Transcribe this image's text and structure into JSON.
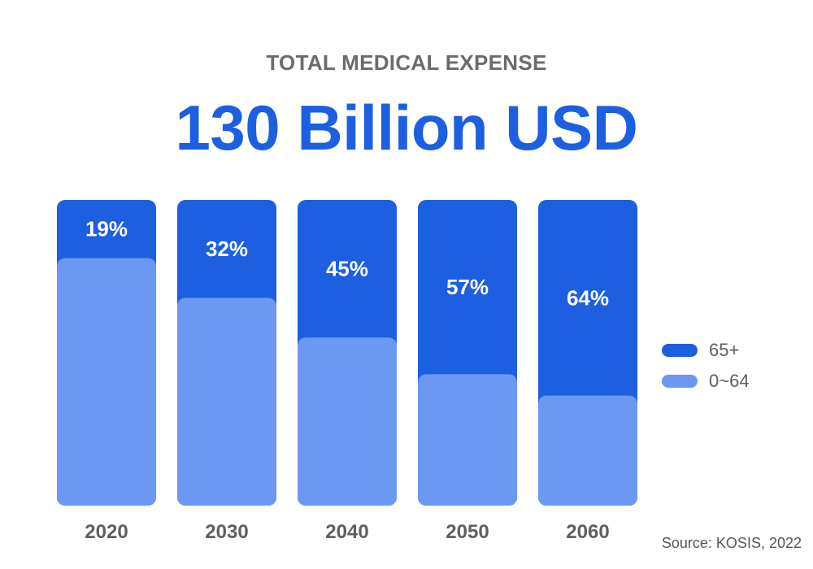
{
  "header": {
    "subtitle": "TOTAL MEDICAL EXPENSE",
    "headline": "130 Billion USD"
  },
  "legend": [
    {
      "label": "65+",
      "color": "#1c5fe0"
    },
    {
      "label": "0~64",
      "color": "#6a98f3"
    }
  ],
  "source": "Source: KOSIS, 2022",
  "chart_data": {
    "type": "bar",
    "stacked": true,
    "title": "TOTAL MEDICAL EXPENSE",
    "categories": [
      "2020",
      "2030",
      "2040",
      "2050",
      "2060"
    ],
    "series": [
      {
        "name": "65+",
        "values": [
          19,
          32,
          45,
          57,
          64
        ],
        "color": "#1c5fe0"
      },
      {
        "name": "0~64",
        "values": [
          81,
          68,
          55,
          43,
          36
        ],
        "color": "#6a98f3"
      }
    ],
    "data_labels": [
      "19%",
      "32%",
      "45%",
      "57%",
      "64%"
    ],
    "ylim": [
      0,
      100
    ],
    "xlabel": "",
    "ylabel": "",
    "grid": false,
    "legend_position": "right"
  }
}
